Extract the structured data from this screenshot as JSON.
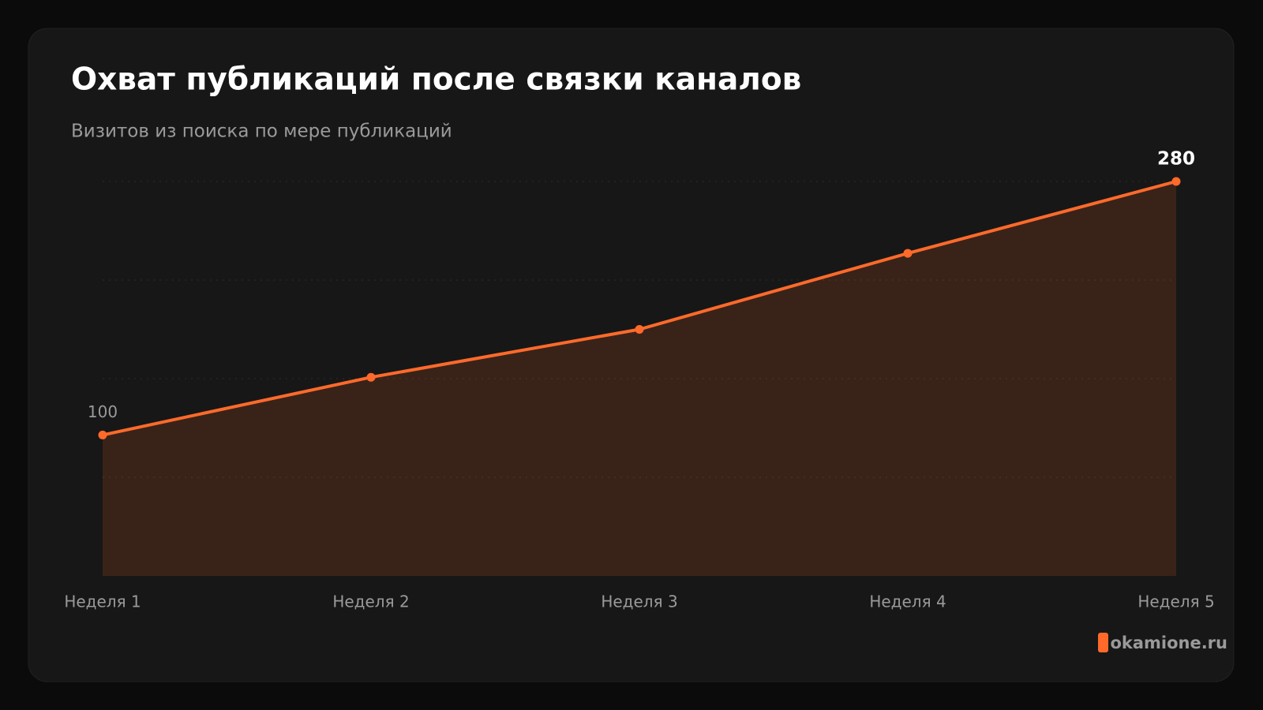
{
  "chart_data": {
    "type": "area",
    "title": "Охват публикаций после связки каналов",
    "subtitle": "Визитов из поиска по мере публикаций",
    "categories": [
      "Неделя 1",
      "Неделя 2",
      "Неделя 3",
      "Неделя 4",
      "Неделя 5"
    ],
    "values": [
      100,
      141,
      175,
      229,
      280
    ],
    "value_labels": [
      "100",
      null,
      null,
      null,
      "280"
    ],
    "color": "#ff6a2b",
    "ylim": [
      0,
      280
    ],
    "yticks": [
      70,
      140,
      210,
      280
    ],
    "grid": true,
    "watermark": "okamione.ru"
  }
}
